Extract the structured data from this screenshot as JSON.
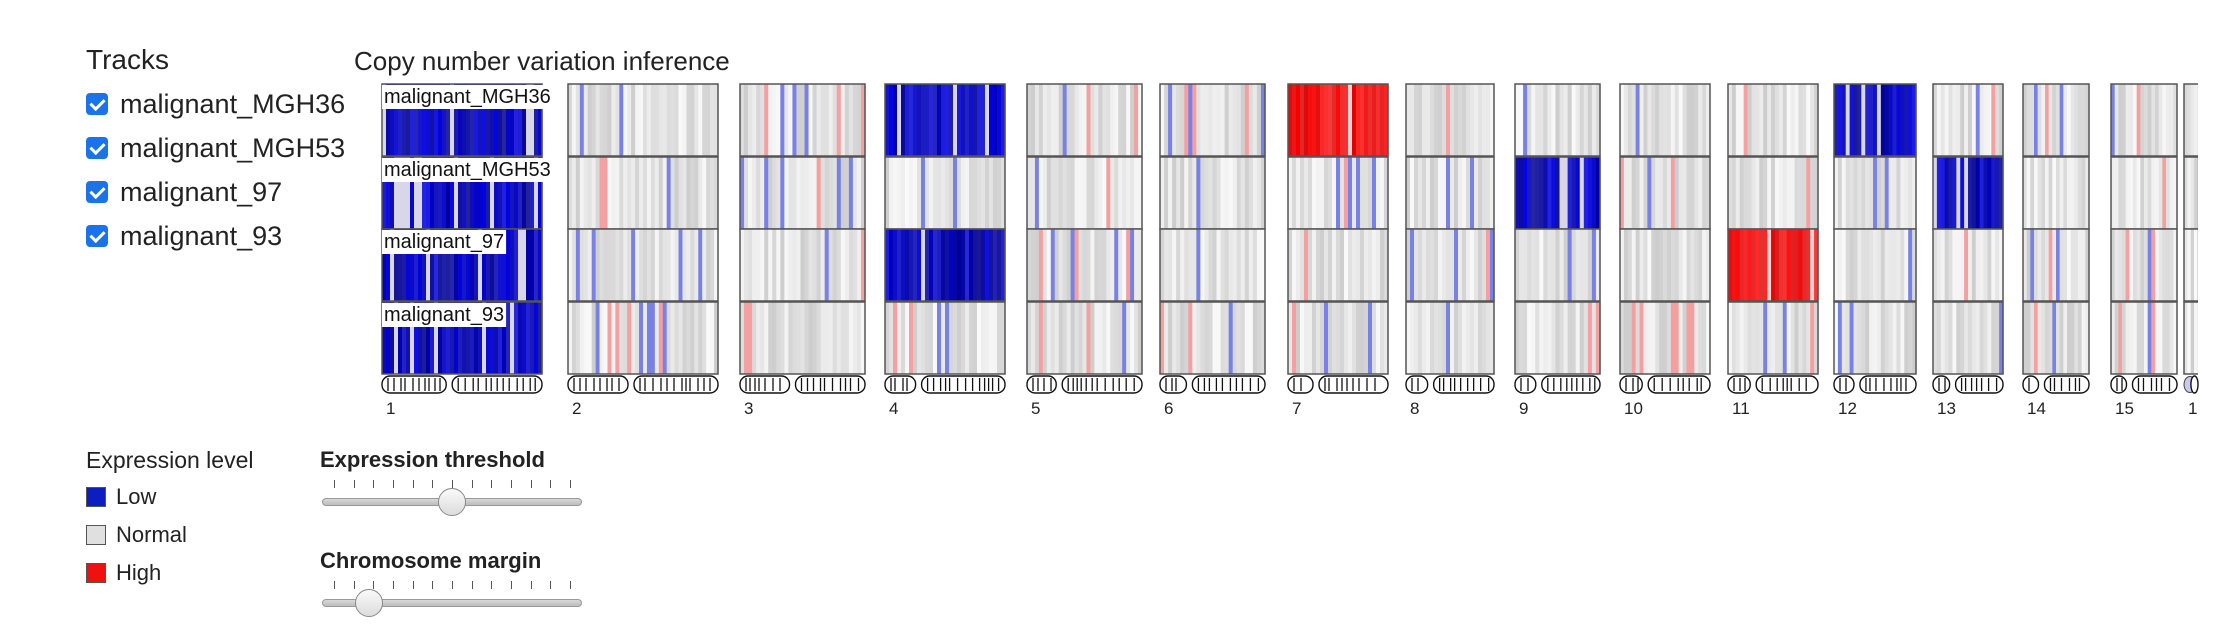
{
  "tracks": {
    "title": "Tracks",
    "items": [
      {
        "label": "malignant_MGH36",
        "checked": true
      },
      {
        "label": "malignant_MGH53",
        "checked": true
      },
      {
        "label": "malignant_97",
        "checked": true
      },
      {
        "label": "malignant_93",
        "checked": true
      }
    ]
  },
  "heatmap": {
    "title": "Copy number variation inference",
    "colors": {
      "low": "#0000c8",
      "normal": "#e6e6e6",
      "high": "#ff0000"
    },
    "chromosomes": [
      "1",
      "2",
      "3",
      "4",
      "5",
      "6",
      "7",
      "8",
      "9",
      "10",
      "11",
      "12",
      "13",
      "14",
      "15",
      "1"
    ],
    "row_labels": [
      "malignant_MGH36",
      "malignant_MGH53",
      "malignant_97",
      "malignant_93"
    ],
    "states": [
      [
        "L",
        "N",
        "N",
        "L",
        "N",
        "N",
        "H",
        "N",
        "N",
        "N",
        "N",
        "L",
        "N",
        "N",
        "N",
        "N"
      ],
      [
        "L",
        "N",
        "N",
        "N",
        "N",
        "N",
        "N",
        "N",
        "L",
        "N",
        "N",
        "N",
        "L",
        "N",
        "N",
        "N"
      ],
      [
        "L",
        "N",
        "N",
        "L",
        "N",
        "N",
        "N",
        "N",
        "N",
        "N",
        "H",
        "N",
        "N",
        "N",
        "N",
        "N"
      ],
      [
        "L",
        "N",
        "N",
        "N",
        "N",
        "N",
        "N",
        "N",
        "N",
        "N",
        "N",
        "N",
        "N",
        "N",
        "N",
        "N"
      ]
    ]
  },
  "legend": {
    "title": "Expression level",
    "items": [
      {
        "label": "Low",
        "color": "#0b1fc0"
      },
      {
        "label": "Normal",
        "color": "#e0e0e0"
      },
      {
        "label": "High",
        "color": "#ee1111"
      }
    ]
  },
  "sliders": {
    "expression_threshold": {
      "label": "Expression threshold",
      "value_fraction": 0.5
    },
    "chromosome_margin": {
      "label": "Chromosome margin",
      "value_fraction": 0.15
    }
  }
}
